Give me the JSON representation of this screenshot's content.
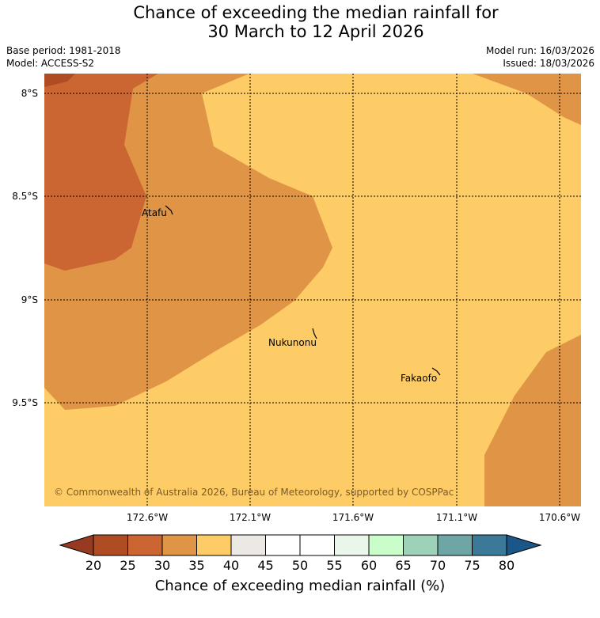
{
  "title": {
    "line1": "Chance of exceeding the median rainfall for",
    "line2": "30 March to 12 April 2026"
  },
  "meta": {
    "base_period": "Base period: 1981-2018",
    "model": "Model: ACCESS-S2",
    "model_run": "Model run: 16/03/2026",
    "issued": "Issued: 18/03/2026"
  },
  "map": {
    "latitude_labels": [
      "8°S",
      "8.5°S",
      "9°S",
      "9.5°S"
    ],
    "longitude_labels": [
      "172.6°W",
      "172.1°W",
      "171.6°W",
      "171.1°W",
      "170.6°W"
    ],
    "places": [
      "Atafu",
      "Nukunonu",
      "Fakaofo"
    ],
    "copyright": "© Commonwealth of Australia 2026, Bureau of Meteorology, supported by COSPPac",
    "colors": {
      "band_20_25": "#b04c24",
      "band_25_30": "#cb6633",
      "band_30_35": "#e09445",
      "band_35_40": "#fdcc66"
    }
  },
  "colorbar": {
    "ticks": [
      "20",
      "25",
      "30",
      "35",
      "40",
      "45",
      "50",
      "55",
      "60",
      "65",
      "70",
      "75",
      "80"
    ],
    "colors": [
      "#b04c24",
      "#cb6633",
      "#e09445",
      "#fdcc66",
      "#ece9e4",
      "#ffffff",
      "#ffffff",
      "#eaf6ea",
      "#c9fdc9",
      "#9ed2b8",
      "#6ea6a6",
      "#3c7898"
    ],
    "under_color": "#963b22",
    "over_color": "#1a5688",
    "label": "Chance of exceeding median rainfall (%)"
  }
}
